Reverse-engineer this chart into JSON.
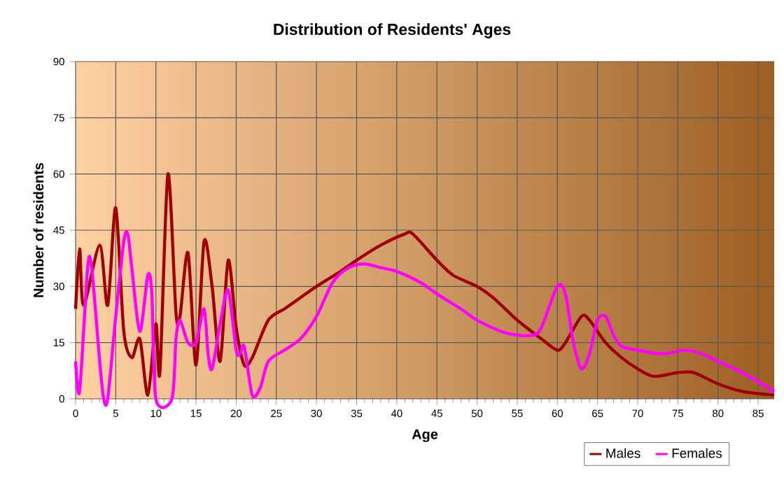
{
  "chart_data": {
    "type": "line",
    "title": "Distribution of Residents' Ages",
    "xlabel": "Age",
    "ylabel": "Number of residents",
    "xlim": [
      0,
      87
    ],
    "ylim": [
      0,
      90
    ],
    "xticks": [
      0,
      5,
      10,
      15,
      20,
      25,
      30,
      35,
      40,
      45,
      50,
      55,
      60,
      65,
      70,
      75,
      80,
      85
    ],
    "yticks": [
      0,
      15,
      30,
      45,
      60,
      75,
      90
    ],
    "grid": true,
    "legend": "bottom right",
    "series": [
      {
        "name": "Males",
        "color": "#a00000",
        "x": [
          0,
          0.5,
          1,
          3,
          4,
          5,
          6,
          7,
          8,
          9,
          10,
          10.5,
          11.5,
          12.5,
          13,
          14,
          15,
          16,
          17,
          18,
          19,
          20,
          21,
          22,
          24,
          26,
          28,
          30,
          33,
          35,
          38,
          41,
          42,
          45,
          47,
          50,
          52,
          55,
          58,
          60,
          61,
          63,
          64,
          66,
          68,
          70,
          72,
          75,
          77,
          80,
          83,
          87
        ],
        "values": [
          24,
          40,
          25,
          41,
          25,
          51,
          18,
          11,
          16,
          1,
          20,
          7,
          60,
          23,
          22,
          39,
          9,
          42,
          30,
          10,
          37,
          19,
          9,
          11,
          21,
          24,
          27,
          30,
          34,
          37,
          41,
          44,
          44,
          37,
          33,
          30,
          27,
          21,
          16,
          13,
          15,
          22,
          21,
          15,
          11,
          8,
          6,
          7,
          7,
          4,
          2,
          1
        ]
      },
      {
        "name": "Females",
        "color": "#ff00ff",
        "x": [
          0,
          0.5,
          1.5,
          2,
          3,
          3.5,
          4,
          5,
          6,
          6.5,
          7,
          8,
          9,
          9.5,
          10,
          12,
          12.5,
          13,
          14,
          15,
          16,
          16.5,
          17,
          18,
          19,
          20,
          20.5,
          21,
          22,
          23,
          24,
          26,
          28,
          30,
          32,
          34,
          36,
          38,
          40,
          43,
          45,
          48,
          50,
          53,
          55,
          57,
          58,
          60,
          61,
          62,
          63,
          64,
          65,
          66,
          67,
          68,
          70,
          73,
          76,
          78,
          80,
          83,
          87
        ],
        "values": [
          10,
          2,
          35,
          35,
          10,
          0,
          0,
          22,
          42,
          44,
          35,
          18,
          33,
          28,
          0,
          0,
          16,
          21,
          15,
          15,
          24,
          12,
          8,
          20,
          29,
          13,
          12,
          14,
          1,
          3,
          10,
          13,
          16,
          22,
          31,
          35,
          36,
          35,
          34,
          31,
          28,
          24,
          21,
          18,
          17,
          17,
          19,
          30,
          28,
          15,
          8,
          12,
          21,
          22,
          17,
          14,
          13,
          12,
          13,
          12,
          10,
          7,
          2
        ]
      }
    ]
  }
}
